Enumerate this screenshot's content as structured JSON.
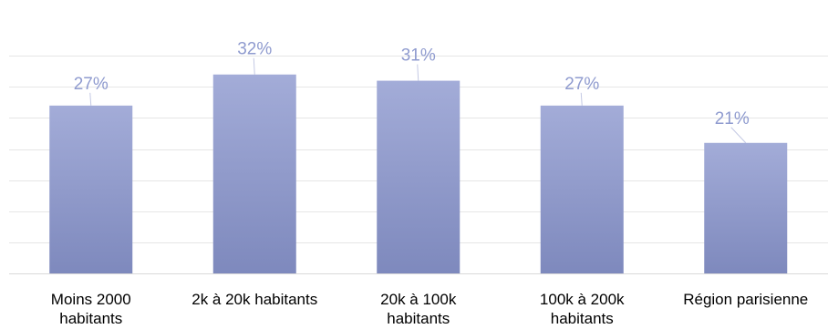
{
  "chart_data": {
    "type": "bar",
    "categories": [
      [
        "Moins 2000",
        "habitants"
      ],
      [
        "2k à 20k habitants"
      ],
      [
        "20k à 100k",
        "habitants"
      ],
      [
        "100k à 200k",
        "habitants"
      ],
      [
        "Région parisienne"
      ]
    ],
    "values": [
      27,
      32,
      31,
      27,
      21
    ],
    "data_labels": [
      "27%",
      "32%",
      "31%",
      "27%",
      "21%"
    ],
    "value_unit": "%",
    "ylim": [
      0,
      39
    ],
    "grid": true,
    "legend": "none",
    "colors": {
      "bar_top": "#a3acd8",
      "bar_bottom": "#7e89bd",
      "data_label": "#8f9bcf",
      "leader_line": "#c4c9e4",
      "grid": "#e6e6e6",
      "axis": "#d9d9d9"
    }
  }
}
